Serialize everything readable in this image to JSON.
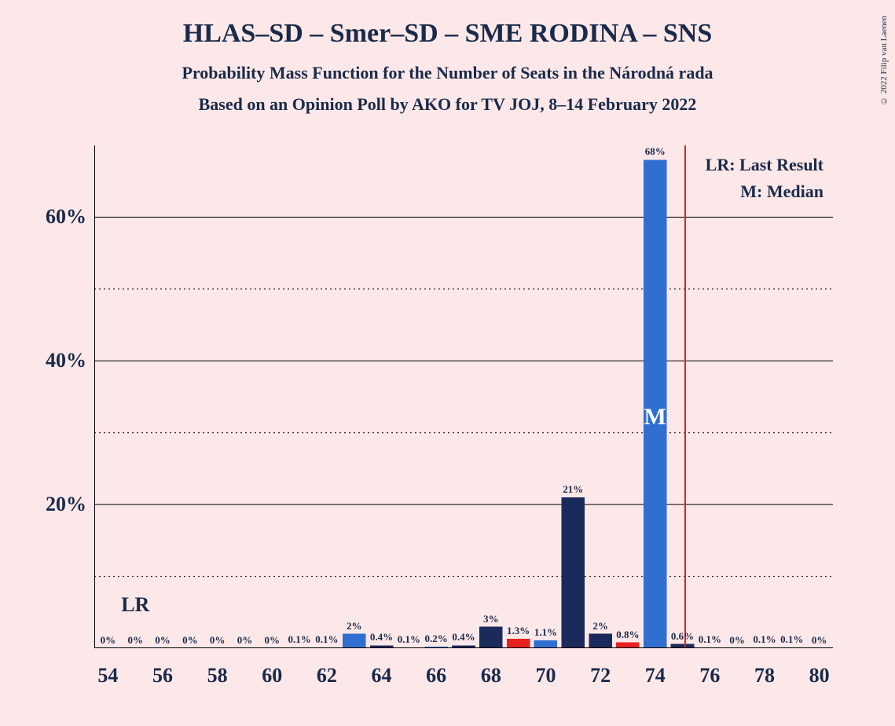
{
  "title": "HLAS–SD – Smer–SD – SME RODINA – SNS",
  "title_fontsize": 34,
  "subtitle1": "Probability Mass Function for the Number of Seats in the Národná rada",
  "subtitle2": "Based on an Opinion Poll by AKO for TV JOJ, 8–14 February 2022",
  "subtitle_fontsize": 22,
  "copyright": "© 2022 Filip van Laenen",
  "background_color": "#fce8e8",
  "text_color": "#1a2a4a",
  "chart": {
    "type": "bar",
    "xlim": [
      53.5,
      80.5
    ],
    "ylim": [
      0,
      70
    ],
    "x_ticks": [
      54,
      56,
      58,
      60,
      62,
      64,
      66,
      68,
      70,
      72,
      74,
      76,
      78,
      80
    ],
    "y_ticks_major": [
      20,
      40,
      60
    ],
    "y_ticks_minor": [
      10,
      30,
      50
    ],
    "bar_width": 0.85,
    "grid_color": "#000000",
    "lr_line_color": "#e82020",
    "lr_x": 55,
    "lr_annot_label": "LR",
    "median_x": 74,
    "median_label": "M",
    "legend": {
      "lr": "LR: Last Result",
      "m": "M: Median"
    },
    "color_cycle": [
      "#1a2a5a",
      "#e82020",
      "#2f6fd0"
    ],
    "bars": [
      {
        "x": 54,
        "value": 0,
        "label": "0%",
        "color": "#2f6fd0"
      },
      {
        "x": 55,
        "value": 0,
        "label": "0%",
        "color": "#1a2a5a"
      },
      {
        "x": 56,
        "value": 0,
        "label": "0%",
        "color": "#e82020"
      },
      {
        "x": 57,
        "value": 0,
        "label": "0%",
        "color": "#2f6fd0"
      },
      {
        "x": 58,
        "value": 0,
        "label": "0%",
        "color": "#1a2a5a"
      },
      {
        "x": 59,
        "value": 0,
        "label": "0%",
        "color": "#e82020"
      },
      {
        "x": 60,
        "value": 0,
        "label": "0%",
        "color": "#2f6fd0"
      },
      {
        "x": 61,
        "value": 0.1,
        "label": "0.1%",
        "color": "#1a2a5a"
      },
      {
        "x": 62,
        "value": 0.1,
        "label": "0.1%",
        "color": "#e82020"
      },
      {
        "x": 63,
        "value": 2,
        "label": "2%",
        "color": "#2f6fd0"
      },
      {
        "x": 64,
        "value": 0.4,
        "label": "0.4%",
        "color": "#1a2a5a"
      },
      {
        "x": 65,
        "value": 0.1,
        "label": "0.1%",
        "color": "#e82020"
      },
      {
        "x": 66,
        "value": 0.2,
        "label": "0.2%",
        "color": "#2f6fd0"
      },
      {
        "x": 67,
        "value": 0.4,
        "label": "0.4%",
        "color": "#1a2a5a"
      },
      {
        "x": 68,
        "value": 3,
        "label": "3%",
        "color": "#1a2a5a"
      },
      {
        "x": 69,
        "value": 1.3,
        "label": "1.3%",
        "color": "#e82020"
      },
      {
        "x": 70,
        "value": 1.1,
        "label": "1.1%",
        "color": "#2f6fd0"
      },
      {
        "x": 71,
        "value": 21,
        "label": "21%",
        "color": "#1a2a5a"
      },
      {
        "x": 72,
        "value": 2,
        "label": "2%",
        "color": "#1a2a5a"
      },
      {
        "x": 73,
        "value": 0.8,
        "label": "0.8%",
        "color": "#e82020"
      },
      {
        "x": 74,
        "value": 68,
        "label": "68%",
        "color": "#2f6fd0"
      },
      {
        "x": 75,
        "value": 0.6,
        "label": "0.6%",
        "color": "#1a2a5a"
      },
      {
        "x": 76,
        "value": 0.1,
        "label": "0.1%",
        "color": "#e82020"
      },
      {
        "x": 77,
        "value": 0,
        "label": "0%",
        "color": "#2f6fd0"
      },
      {
        "x": 78,
        "value": 0.1,
        "label": "0.1%",
        "color": "#1a2a5a"
      },
      {
        "x": 79,
        "value": 0.1,
        "label": "0.1%",
        "color": "#e82020"
      },
      {
        "x": 80,
        "value": 0,
        "label": "0%",
        "color": "#2f6fd0"
      }
    ]
  }
}
